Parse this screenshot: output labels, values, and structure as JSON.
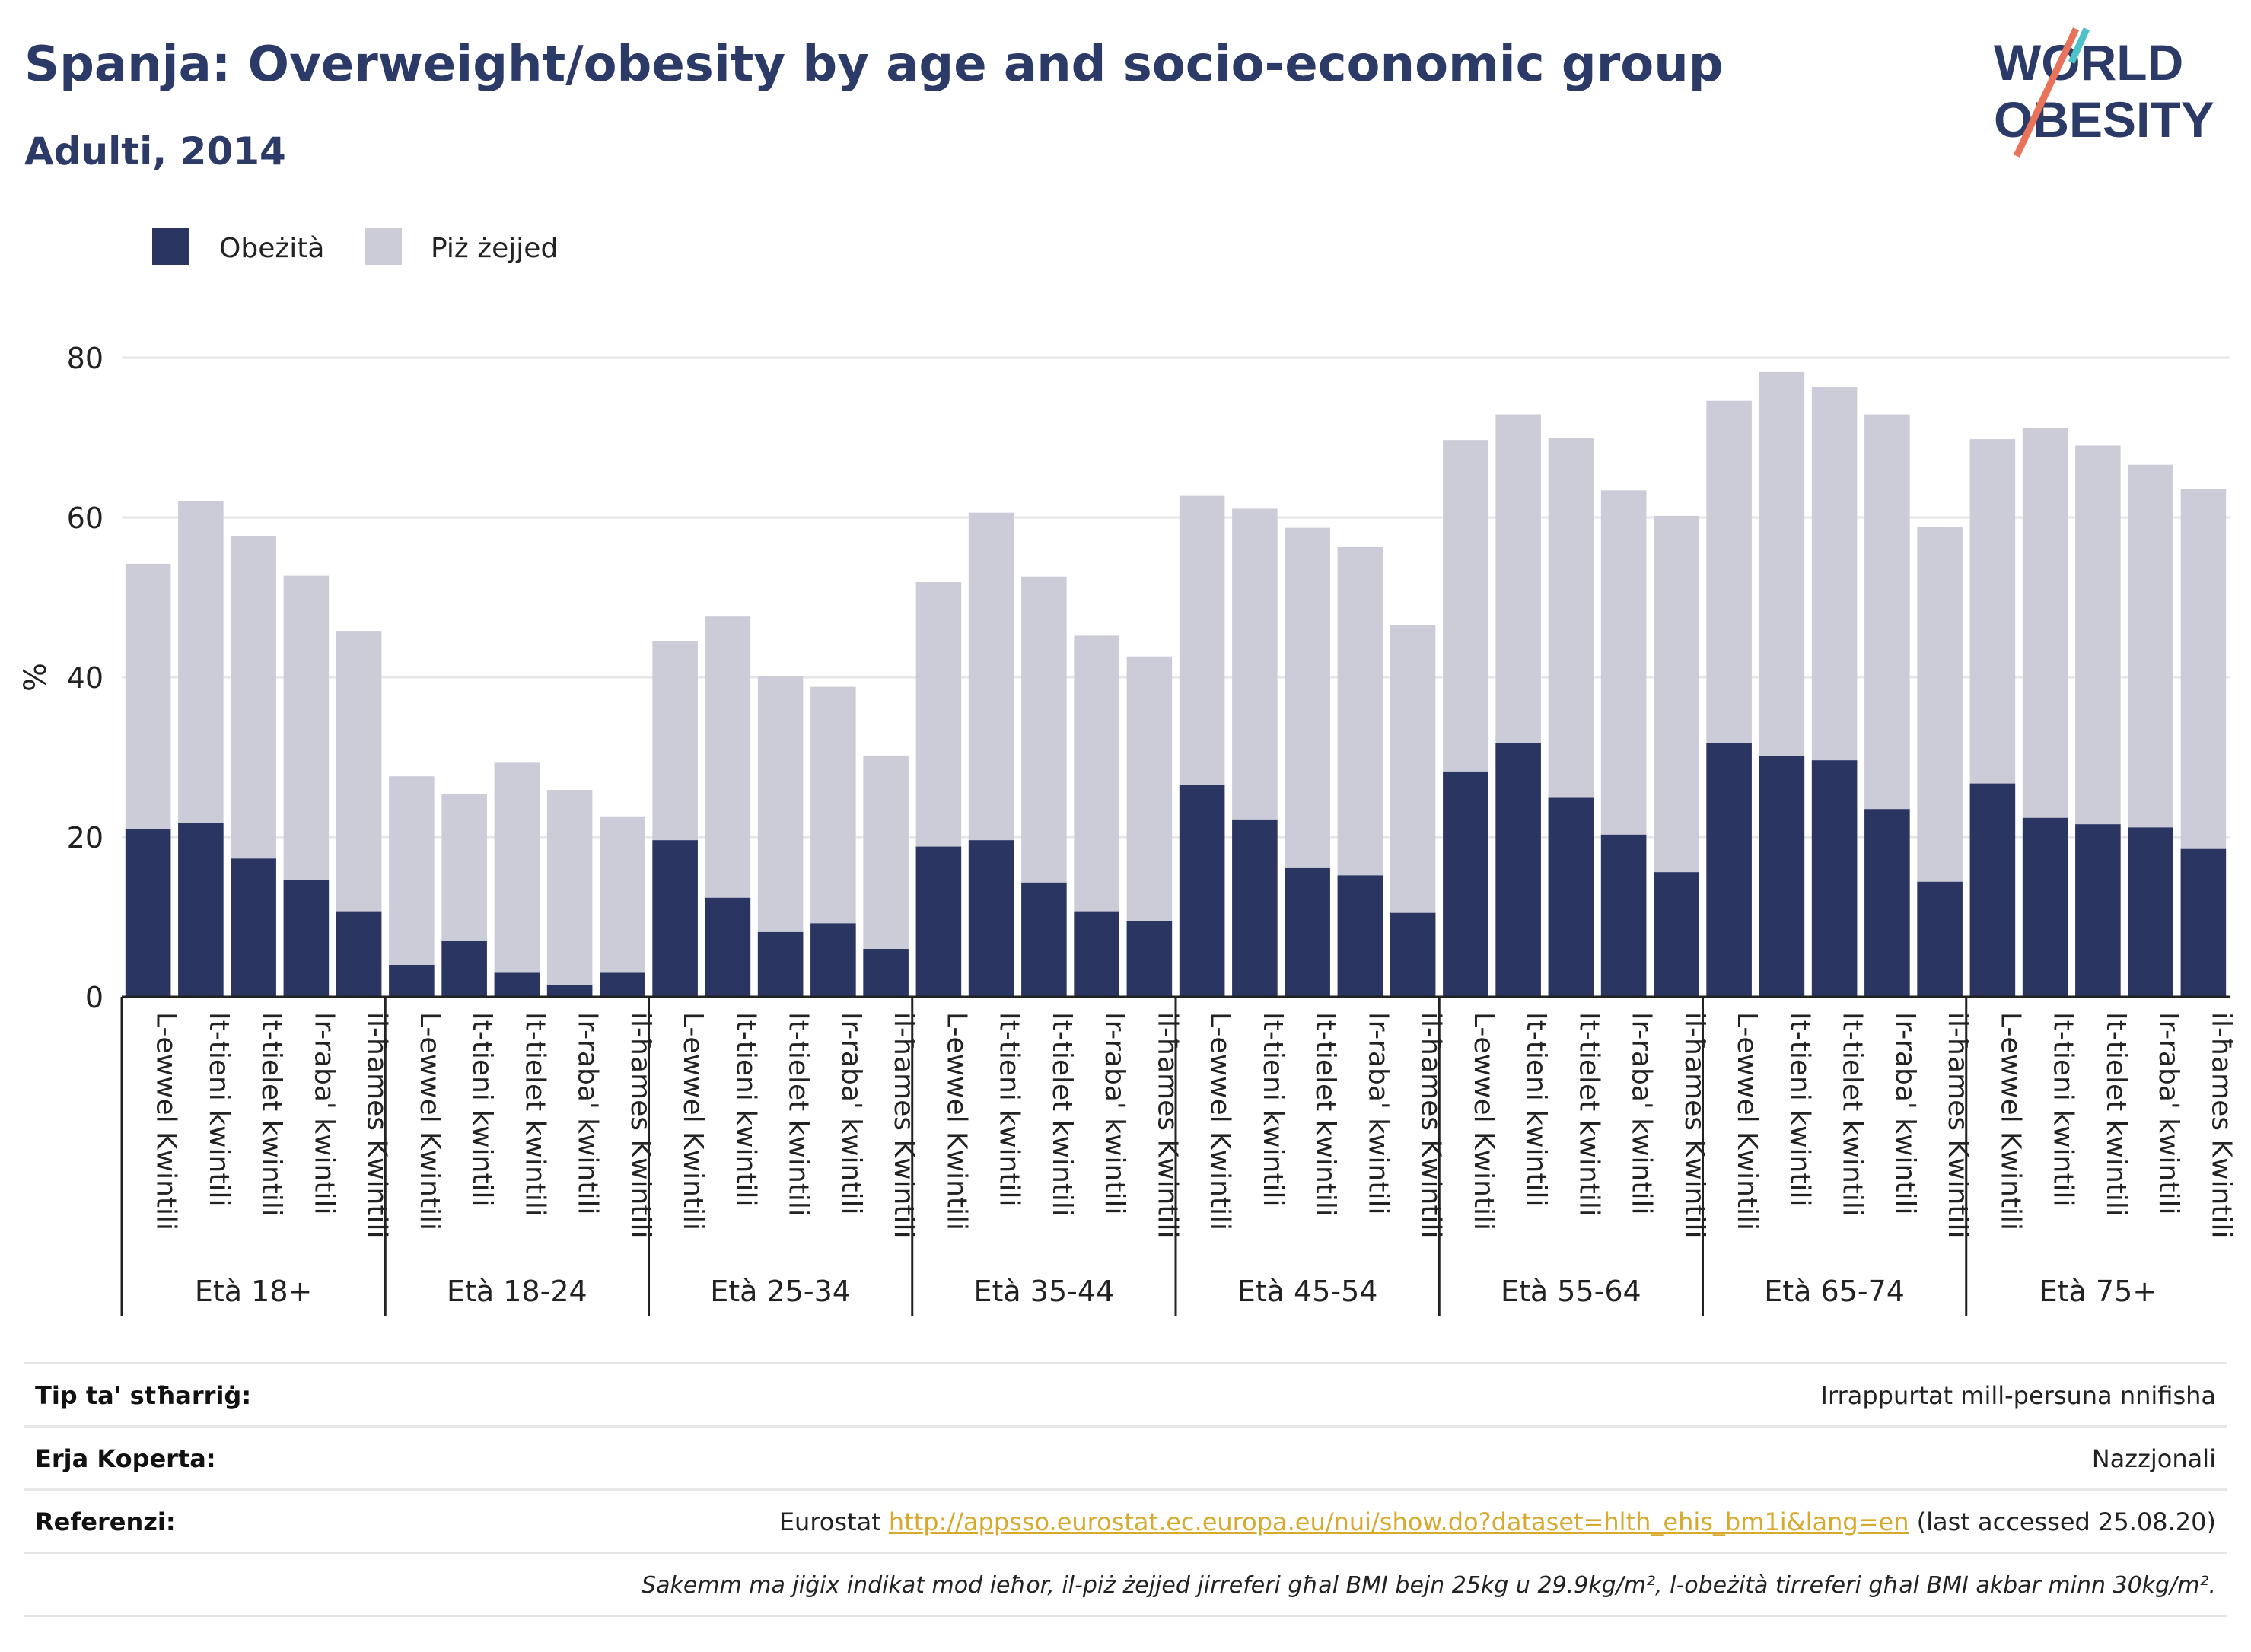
{
  "header": {
    "title": "Spanja: Overweight/obesity by age and socio-economic group",
    "subtitle": "Adulti, 2014"
  },
  "logo": {
    "line1": "WORLD",
    "line2": "OBESITY"
  },
  "colors": {
    "obesity": "#2b3562",
    "overweight": "#cbccd8",
    "title": "#2b3a67",
    "grid": "#e6e6e6",
    "link": "#d7a92c"
  },
  "chart_data": {
    "type": "bar",
    "stacked": true,
    "ylabel": "%",
    "ylim": [
      0,
      80
    ],
    "yticks": [
      0,
      20,
      40,
      60,
      80
    ],
    "legend": [
      "Obeżità",
      "Piż żejjed"
    ],
    "legend_position": "top-left",
    "grid": true,
    "groups": [
      "Età 18+",
      "Età 18-24",
      "Età 25-34",
      "Età 35-44",
      "Età 45-54",
      "Età 55-64",
      "Età 65-74",
      "Età 75+"
    ],
    "categories": [
      "L-ewwel Kwintili",
      "It-tieni kwintili",
      "It-tielet kwintili",
      "Ir-raba' kwintili",
      "il-ħames Kwintili"
    ],
    "series": [
      {
        "name": "Obeżità",
        "values": [
          [
            21.0,
            21.8,
            17.3,
            14.6,
            10.7
          ],
          [
            4.0,
            7.0,
            3.0,
            1.5,
            3.0
          ],
          [
            19.6,
            12.4,
            8.1,
            9.2,
            6.0
          ],
          [
            18.8,
            19.6,
            14.3,
            10.7,
            9.5
          ],
          [
            26.5,
            22.2,
            16.1,
            15.2,
            10.5
          ],
          [
            28.2,
            31.8,
            24.9,
            20.3,
            15.6
          ],
          [
            31.8,
            30.1,
            29.6,
            23.5,
            14.4
          ],
          [
            26.7,
            22.4,
            21.6,
            21.2,
            18.5
          ]
        ]
      },
      {
        "name": "Piż żejjed",
        "values": [
          [
            54.2,
            62.0,
            57.7,
            52.7,
            45.8
          ],
          [
            27.6,
            25.4,
            29.3,
            25.9,
            22.5
          ],
          [
            44.5,
            47.6,
            40.1,
            38.8,
            30.2
          ],
          [
            51.9,
            60.6,
            52.6,
            45.2,
            42.6
          ],
          [
            62.7,
            61.1,
            58.7,
            56.3,
            46.5
          ],
          [
            69.7,
            72.9,
            69.9,
            63.4,
            60.2
          ],
          [
            74.6,
            78.2,
            76.3,
            72.9,
            58.8
          ],
          [
            69.8,
            71.2,
            69.0,
            66.6,
            63.6
          ]
        ]
      }
    ]
  },
  "info": {
    "rows": [
      {
        "label": "Tip ta' stħarriġ:",
        "value": "Irrappurtat mill-persuna nnifisha"
      },
      {
        "label": "Erja Koperta:",
        "value": "Nazzjonali"
      },
      {
        "label": "Referenzi:",
        "value_prefix": "Eurostat ",
        "link": "http://appsso.eurostat.ec.europa.eu/nui/show.do?dataset=hlth_ehis_bm1i&lang=en",
        "value_suffix": " (last accessed 25.08.20)"
      }
    ],
    "note": "Sakemm ma jiġix indikat mod ieħor, il-piż żejjed jirreferi għal BMI bejn 25kg u 29.9kg/m², l-obeżità tirreferi għal BMI akbar minn 30kg/m²."
  }
}
